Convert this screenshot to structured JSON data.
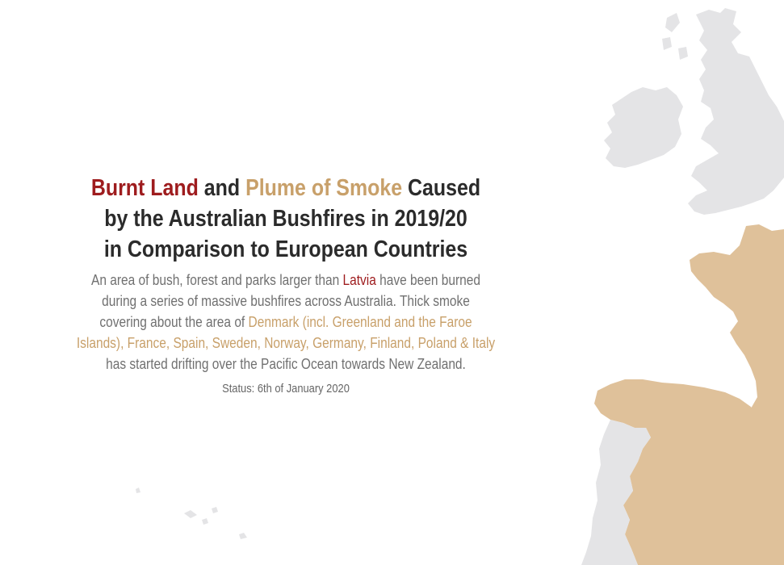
{
  "title": {
    "burnt_label": "Burnt Land",
    "and_text": "and",
    "smoke_label": "Plume of Smoke",
    "line1_rest": "Caused",
    "line2": "by the Australian Bushfires in 2019/20",
    "line3": "in Comparison to European Countries"
  },
  "description": {
    "l1_a": "An area of bush, forest and parks larger than",
    "l1_country": "Latvia",
    "l1_b": "have been burned",
    "l2": "during a series of massive bushfires across Australia. Thick smoke",
    "l3_a": "covering about the area of",
    "l3_countries": "Denmark (incl. Greenland and the Faroe",
    "l4_countries": "Islands), France, Spain, Sweden, Norway, Germany, Finland, Poland & Italy",
    "l5": "has started drifting over the Pacific Ocean towards New Zealand."
  },
  "status": "Status: 6th of January 2020",
  "colors": {
    "burnt": "#9e1c1e",
    "smoke": "#c8a06a",
    "land_gray": "#e4e4e6",
    "land_smoke": "#dfc19a",
    "heading": "#2b2b2b",
    "body_text": "#707070"
  }
}
